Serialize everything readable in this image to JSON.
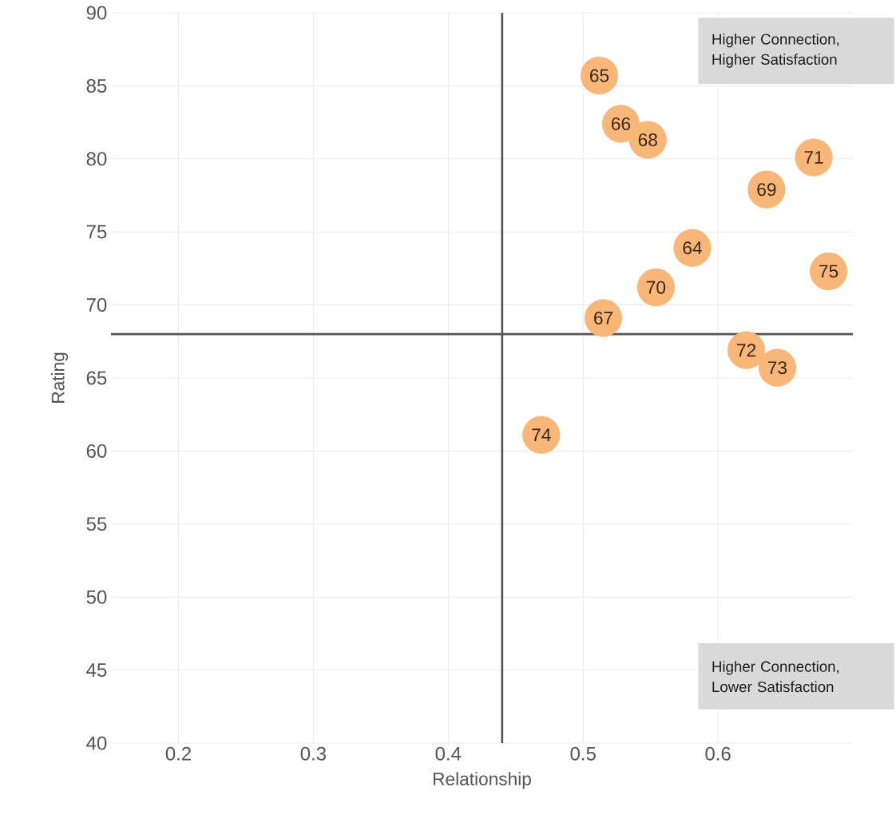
{
  "chart_data": {
    "type": "scatter",
    "xlabel": "Relationship",
    "ylabel": "Rating",
    "xlim": [
      0.15,
      0.7
    ],
    "ylim": [
      40,
      90
    ],
    "xticks": [
      0.2,
      0.3,
      0.4,
      0.5,
      0.6
    ],
    "yticks": [
      40,
      45,
      50,
      55,
      60,
      65,
      70,
      75,
      80,
      85,
      90
    ],
    "grid": true,
    "ref_lines": [
      {
        "axis": "x",
        "value": 0.44,
        "color": "#555555"
      },
      {
        "axis": "y",
        "value": 68,
        "color": "#555555"
      }
    ],
    "annotations": [
      "Higher Connection, Higher Satisfaction",
      "Higher Connection, Lower Satisfaction",
      {
        "text": "64",
        "x": 0.581,
        "y": 73.9
      },
      {
        "text": "65",
        "x": 0.512,
        "y": 85.7
      },
      {
        "text": "66",
        "x": 0.528,
        "y": 82.4
      },
      {
        "text": "67",
        "x": 0.515,
        "y": 69.1
      },
      {
        "text": "68",
        "x": 0.548,
        "y": 81.3
      },
      {
        "text": "69",
        "x": 0.636,
        "y": 77.9
      },
      {
        "text": "70",
        "x": 0.554,
        "y": 71.2
      },
      {
        "text": "71",
        "x": 0.671,
        "y": 80.1
      },
      {
        "text": "72",
        "x": 0.621,
        "y": 66.9
      },
      {
        "text": "73",
        "x": 0.644,
        "y": 65.7
      },
      {
        "text": "74",
        "x": 0.469,
        "y": 61.1
      },
      {
        "text": "75",
        "x": 0.682,
        "y": 72.3
      }
    ],
    "series": [
      {
        "color": "#f8b678",
        "x": [
          0.581,
          0.512,
          0.528,
          0.515,
          0.548,
          0.636,
          0.554,
          0.671,
          0.621,
          0.644,
          0.469,
          0.682
        ],
        "values": [
          73.9,
          85.7,
          82.4,
          69.1,
          81.3,
          77.9,
          71.2,
          80.1,
          66.9,
          65.7,
          61.1,
          72.3
        ]
      }
    ]
  }
}
